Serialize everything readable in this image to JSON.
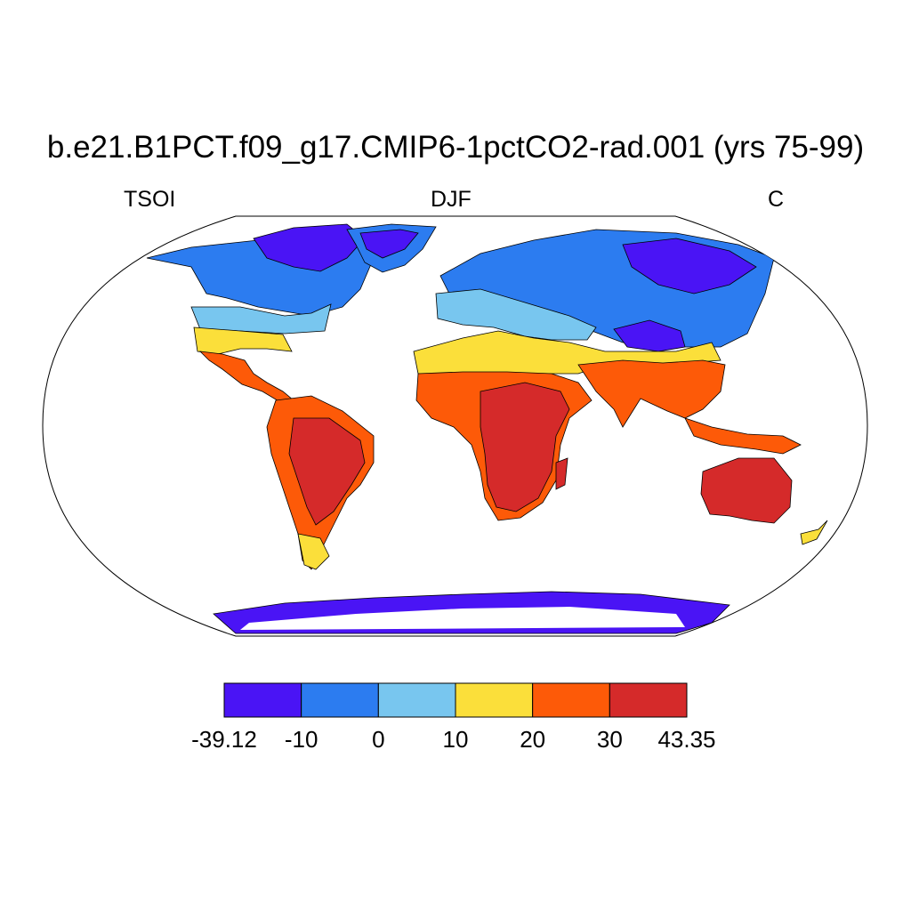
{
  "title": "b.e21.B1PCT.f09_g17.CMIP6-1pctCO2-rad.001 (yrs 75-99)",
  "subtitles": {
    "left": "TSOI",
    "center": "DJF",
    "right": "C"
  },
  "colorbar": {
    "labels": [
      "-39.12",
      "-10",
      "0",
      "10",
      "20",
      "30",
      "43.35"
    ],
    "colors": [
      "#4a14f5",
      "#2c7cf0",
      "#78c6ef",
      "#fbdf3a",
      "#fd5a08",
      "#d52a2a"
    ]
  },
  "map": {
    "projection": "robinson",
    "ocean_color": "#ffffff",
    "coastline_color": "#000000"
  }
}
